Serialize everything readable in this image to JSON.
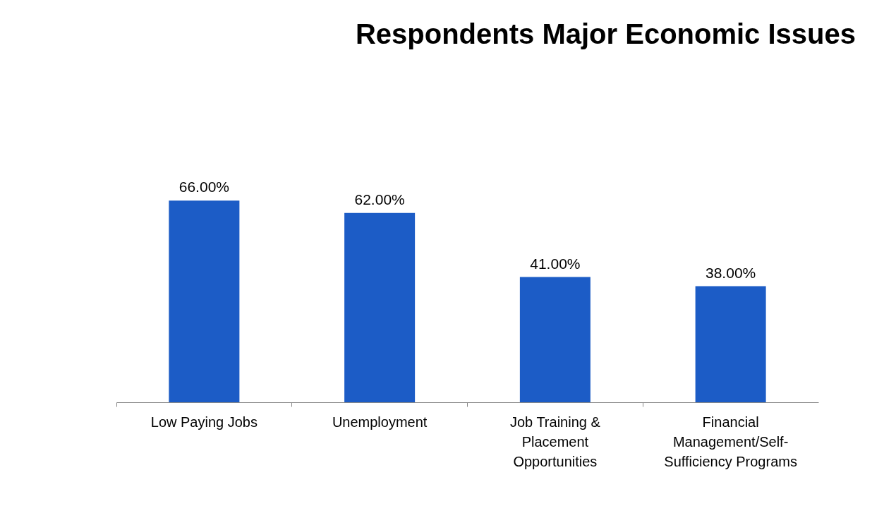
{
  "chart_data": {
    "type": "bar",
    "title": "Respondents Major Economic Issues",
    "categories": [
      "Low Paying Jobs",
      "Unemployment",
      "Job Training & Placement Opportunities",
      "Financial Management/Self-Sufficiency Programs"
    ],
    "values": [
      66,
      62,
      41,
      38
    ],
    "value_labels": [
      "66.00%",
      "62.00%",
      "41.00%",
      "38.00%"
    ],
    "color": "#1c5cc6",
    "grid": false
  }
}
